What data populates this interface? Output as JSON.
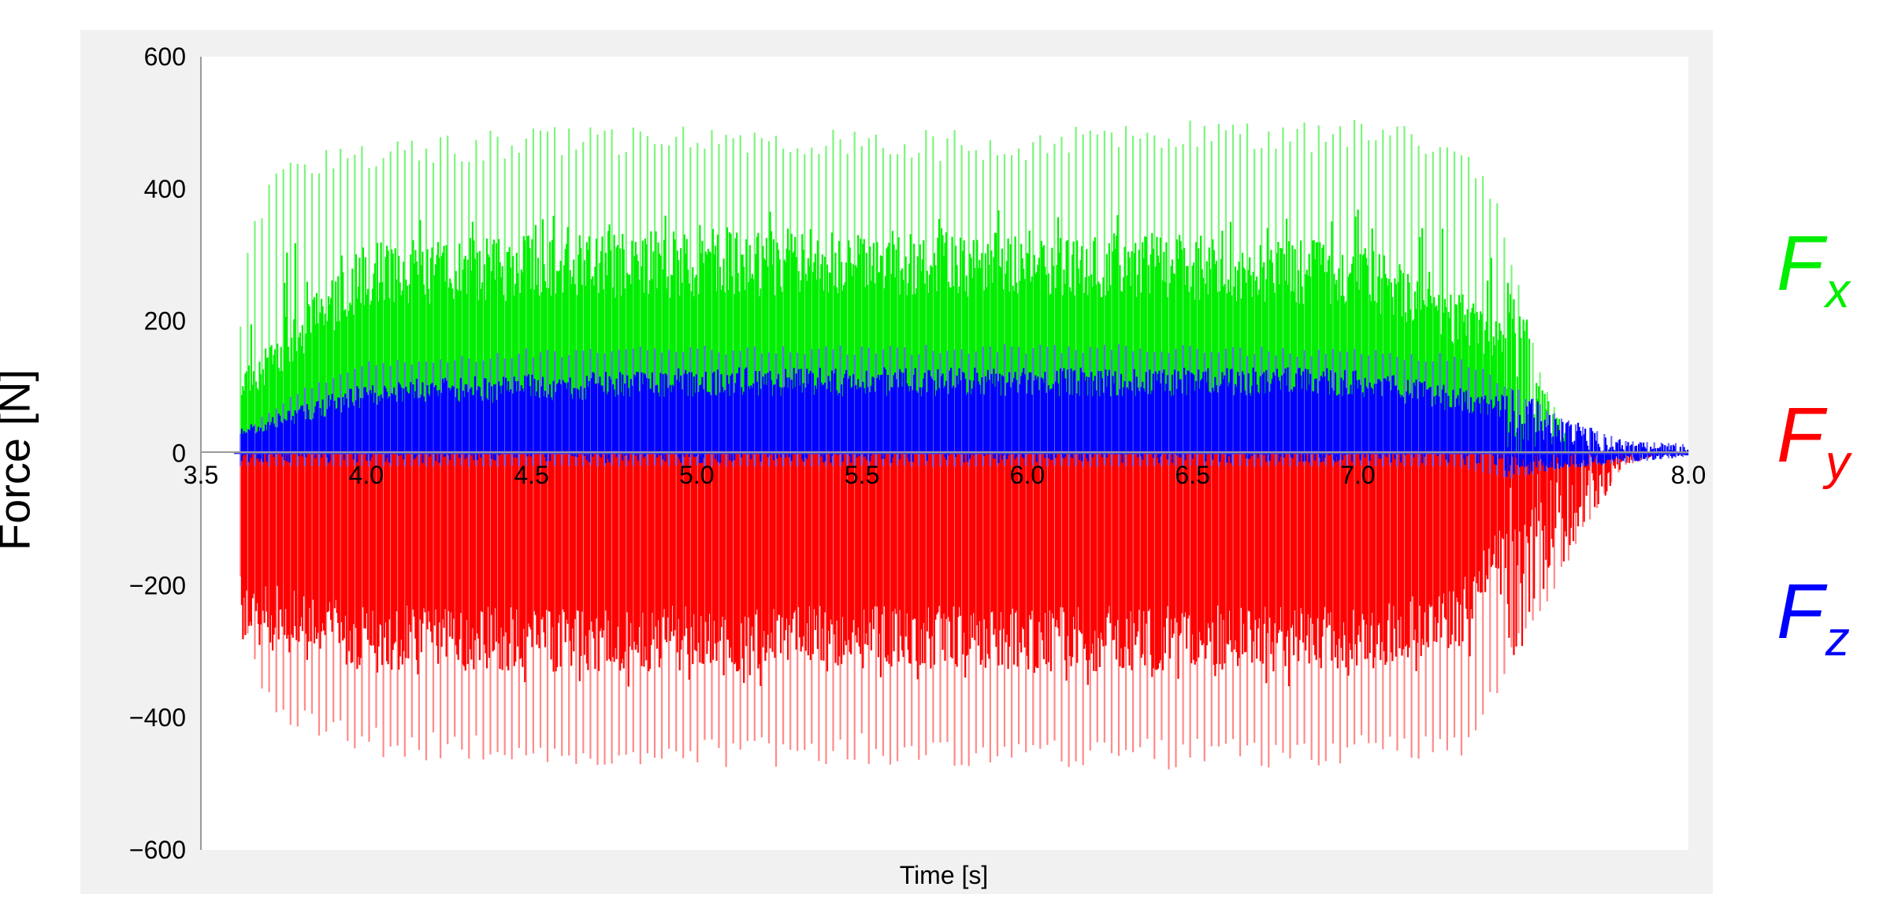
{
  "chart_data": {
    "type": "line",
    "title": "",
    "xlabel": "Time [s]",
    "ylabel": "Force [N]",
    "xlim": [
      3.5,
      8.0
    ],
    "ylim": [
      -600,
      600
    ],
    "xticks": [
      "3.5",
      "4.0",
      "4.5",
      "5.0",
      "5.5",
      "6.0",
      "6.5",
      "7.0",
      "8.0"
    ],
    "xtick_values": [
      3.5,
      4.0,
      4.5,
      5.0,
      5.5,
      6.0,
      6.5,
      7.0,
      8.0
    ],
    "yticks": [
      "600",
      "400",
      "200",
      "0",
      "−200",
      "−400",
      "−600"
    ],
    "ytick_values": [
      600,
      400,
      200,
      0,
      -200,
      -400,
      -600
    ],
    "legend_position": "right, outside plot",
    "grid": false,
    "series": [
      {
        "name": "F_x",
        "legend_main": "F",
        "legend_sub": "x",
        "color": "#00ee00",
        "light_color": "#7cf57c",
        "signal_start": 3.62,
        "signal_end": 7.45,
        "decay_end": 7.65,
        "oscillation_period": 0.022,
        "envelope_max": [
          [
            3.62,
            200
          ],
          [
            3.65,
            360
          ],
          [
            3.75,
            450
          ],
          [
            4.0,
            470
          ],
          [
            4.5,
            495
          ],
          [
            5.0,
            495
          ],
          [
            5.5,
            490
          ],
          [
            6.0,
            490
          ],
          [
            6.5,
            505
          ],
          [
            7.0,
            505
          ],
          [
            7.3,
            485
          ],
          [
            7.4,
            420
          ],
          [
            7.45,
            330
          ],
          [
            7.55,
            130
          ],
          [
            7.65,
            10
          ]
        ],
        "envelope_min": [
          [
            3.62,
            0
          ],
          [
            7.45,
            0
          ]
        ],
        "dense_band": [
          [
            3.62,
            0,
            120
          ],
          [
            4.0,
            80,
            320
          ],
          [
            5.0,
            80,
            340
          ],
          [
            6.0,
            80,
            340
          ],
          [
            7.0,
            80,
            320
          ],
          [
            7.4,
            30,
            220
          ]
        ]
      },
      {
        "name": "F_y",
        "legend_main": "F",
        "legend_sub": "y",
        "color": "#ff0000",
        "light_color": "#ff8a8a",
        "signal_start": 3.62,
        "signal_end": 7.45,
        "decay_end": 7.9,
        "oscillation_period": 0.022,
        "envelope_max": [
          [
            3.62,
            -10
          ],
          [
            7.3,
            -10
          ],
          [
            7.45,
            0
          ]
        ],
        "envelope_min": [
          [
            3.62,
            -200
          ],
          [
            3.65,
            -330
          ],
          [
            3.75,
            -420
          ],
          [
            4.0,
            -460
          ],
          [
            4.5,
            -475
          ],
          [
            5.0,
            -480
          ],
          [
            5.5,
            -470
          ],
          [
            6.0,
            -475
          ],
          [
            6.5,
            -480
          ],
          [
            7.0,
            -470
          ],
          [
            7.2,
            -470
          ],
          [
            7.35,
            -460
          ],
          [
            7.45,
            -330
          ],
          [
            7.55,
            -250
          ],
          [
            7.65,
            -150
          ],
          [
            7.8,
            -20
          ],
          [
            7.9,
            -5
          ]
        ],
        "dense_band": [
          [
            3.62,
            -300,
            -20
          ],
          [
            4.0,
            -330,
            -80
          ],
          [
            5.0,
            -330,
            -80
          ],
          [
            6.0,
            -330,
            -80
          ],
          [
            7.0,
            -330,
            -80
          ],
          [
            7.3,
            -300,
            -60
          ],
          [
            7.45,
            -150,
            -10
          ]
        ]
      },
      {
        "name": "F_z",
        "legend_main": "F",
        "legend_sub": "z",
        "color": "#0000ff",
        "light_color": "#6a6aff",
        "signal_start": 3.62,
        "signal_end": 7.45,
        "decay_end": 8.0,
        "oscillation_period": 0.022,
        "envelope_max": [
          [
            3.62,
            30
          ],
          [
            3.8,
            100
          ],
          [
            4.0,
            140
          ],
          [
            4.5,
            160
          ],
          [
            5.0,
            165
          ],
          [
            5.5,
            165
          ],
          [
            6.0,
            165
          ],
          [
            6.5,
            165
          ],
          [
            7.0,
            160
          ],
          [
            7.3,
            150
          ],
          [
            7.45,
            110
          ],
          [
            7.6,
            60
          ],
          [
            7.8,
            20
          ],
          [
            8.0,
            15
          ]
        ],
        "envelope_min": [
          [
            3.62,
            -20
          ],
          [
            7.3,
            -20
          ],
          [
            7.45,
            -40
          ],
          [
            7.6,
            -25
          ],
          [
            8.0,
            -5
          ]
        ],
        "dense_band": [
          [
            3.62,
            0,
            40
          ],
          [
            4.0,
            10,
            110
          ],
          [
            5.0,
            20,
            130
          ],
          [
            6.0,
            20,
            130
          ],
          [
            7.0,
            20,
            130
          ],
          [
            7.4,
            0,
            90
          ]
        ]
      }
    ]
  }
}
